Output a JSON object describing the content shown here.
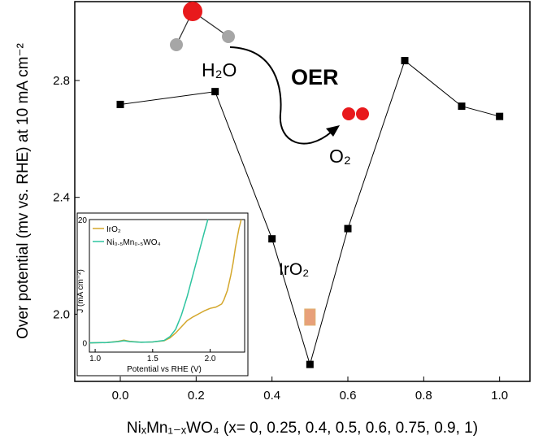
{
  "chart_data": [
    {
      "type": "line",
      "title": "",
      "xlabel": "NiₓMn₁₋ₓWO₄ (x= 0, 0.25, 0.4, 0.5, 0.6, 0.75, 0.9, 1)",
      "ylabel": "Over potential (mv vs. RHE) at 10 mA cm⁻²",
      "xlim": [
        -0.12,
        1.08
      ],
      "ylim": [
        1.77,
        3.07
      ],
      "xticks": [
        0.0,
        0.2,
        0.4,
        0.6,
        0.8,
        1.0
      ],
      "xtick_labels": [
        "0.0",
        "0.2",
        "0.4",
        "0.6",
        "0.8",
        "1.0"
      ],
      "yticks": [
        2.0,
        2.4,
        2.8
      ],
      "ytick_labels": [
        "2.0",
        "2.4",
        "2.8"
      ],
      "grid": false,
      "series": [
        {
          "x": [
            0.0,
            0.25,
            0.4,
            0.5,
            0.6,
            0.75,
            0.9,
            1.0
          ],
          "y": [
            2.718,
            2.762,
            2.258,
            1.828,
            2.293,
            2.868,
            2.712,
            2.677
          ],
          "color": "#000000"
        }
      ],
      "reference_point": {
        "label": "IrO₂",
        "x": 0.5,
        "y": 1.99,
        "color": "#e8a07a"
      },
      "annotations": {
        "reaction_label": "OER",
        "reactant_label": "H₂O",
        "product_label": "O₂",
        "reactant_color": "#2aa9d8",
        "product_color": "#6aa84f",
        "oxygen_atom_color": "#e8191c",
        "hydrogen_atom_color": "#a6a6a6"
      }
    },
    {
      "type": "line",
      "title": "",
      "xlabel": "Potential vs RHE (V)",
      "ylabel": "J (mA cm⁻²)",
      "xlim": [
        0.95,
        2.3
      ],
      "ylim": [
        -1.5,
        20
      ],
      "xticks": [
        1.0,
        1.5,
        2.0
      ],
      "xtick_labels": [
        "1.0",
        "1.5",
        "2.0"
      ],
      "yticks": [
        0,
        20
      ],
      "ytick_labels": [
        "0",
        "20"
      ],
      "legend": "top-left",
      "series": [
        {
          "name": "IrO₂",
          "color": "#d4a72c",
          "x": [
            0.95,
            1.1,
            1.2,
            1.25,
            1.3,
            1.4,
            1.5,
            1.6,
            1.65,
            1.7,
            1.75,
            1.8,
            1.85,
            1.9,
            1.95,
            2.0,
            2.05,
            2.1,
            2.12,
            2.15,
            2.18,
            2.2,
            2.22,
            2.25,
            2.27
          ],
          "y": [
            0.0,
            0.05,
            0.25,
            0.45,
            0.25,
            0.1,
            0.15,
            0.35,
            0.8,
            1.6,
            2.6,
            3.6,
            4.2,
            4.7,
            5.2,
            5.6,
            5.8,
            6.3,
            7.0,
            8.5,
            11.0,
            13.0,
            15.5,
            18.5,
            20.0
          ]
        },
        {
          "name": "Ni₀.₅Mn₀.₅WO₄",
          "color": "#2ec4a0",
          "x": [
            0.95,
            1.1,
            1.2,
            1.25,
            1.3,
            1.4,
            1.5,
            1.6,
            1.65,
            1.7,
            1.75,
            1.8,
            1.85,
            1.9,
            1.95,
            1.98
          ],
          "y": [
            0.0,
            0.05,
            0.2,
            0.35,
            0.2,
            0.1,
            0.15,
            0.4,
            1.0,
            2.2,
            4.5,
            7.5,
            11.0,
            14.5,
            18.0,
            20.0
          ]
        }
      ]
    }
  ]
}
